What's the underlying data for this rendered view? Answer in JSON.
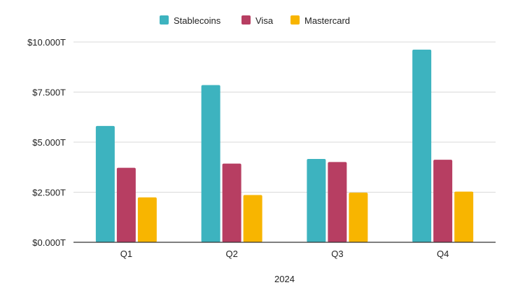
{
  "chart_data": {
    "type": "bar",
    "title": "",
    "xlabel": "2024",
    "ylabel": "",
    "categories": [
      "Q1",
      "Q2",
      "Q3",
      "Q4"
    ],
    "ylim": [
      0,
      10
    ],
    "y_ticks": [
      "$0.000T",
      "$2.500T",
      "$5.000T",
      "$7.500T",
      "$10.000T"
    ],
    "grid": true,
    "legend_position": "top",
    "series": [
      {
        "name": "Stablecoins",
        "color": "#3db3bf",
        "values": [
          5.81,
          7.85,
          4.16,
          9.62
        ]
      },
      {
        "name": "Visa",
        "color": "#b73e62",
        "values": [
          3.72,
          3.93,
          4.01,
          4.12
        ]
      },
      {
        "name": "Mastercard",
        "color": "#f8b500",
        "values": [
          2.24,
          2.36,
          2.48,
          2.53
        ]
      }
    ]
  }
}
